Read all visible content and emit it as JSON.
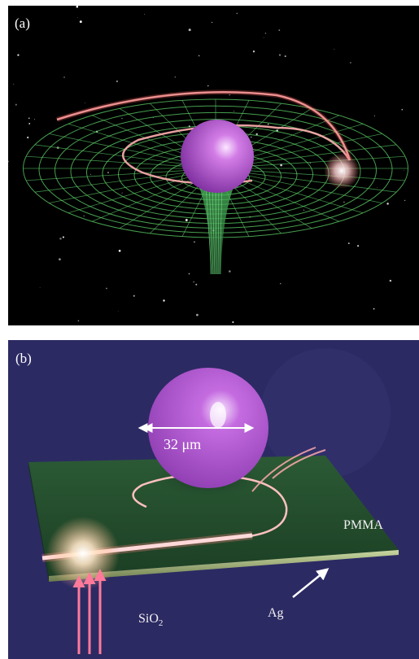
{
  "panel_a": {
    "label": "(a)",
    "colors": {
      "background": "#000000",
      "grid": "#5fd36a",
      "sphere": "#b04bd6",
      "light_path": "#ff9a9a"
    }
  },
  "panel_b": {
    "label": "(b)",
    "diameter_label": "32 μm",
    "layer_pmma": "PMMA",
    "layer_ag": "Ag",
    "layer_sio2_base": "SiO",
    "layer_sio2_sub": "2",
    "colors": {
      "background": "#2c2a63",
      "slab": "#1f4a2a",
      "sphere": "#b04bd6",
      "waveguide": "#ff8f8f",
      "arrows": "#ff6b8f"
    }
  }
}
